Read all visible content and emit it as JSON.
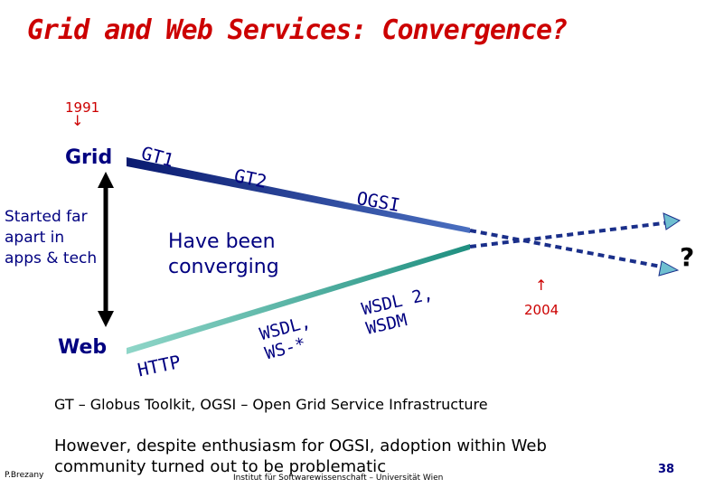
{
  "title": "Grid and Web Services: Convergence?",
  "timeline": {
    "start_year": "1991",
    "end_year": "2004",
    "down_arrow": "↓",
    "up_arrow": "↑"
  },
  "left_axis": {
    "top_label": "Grid",
    "bottom_label": "Web",
    "description": "Started far apart in apps & tech"
  },
  "middle_label": "Have been converging",
  "grid_line_labels": [
    "GT1",
    "GT2",
    "OGSI"
  ],
  "web_line_labels": {
    "http": "HTTP",
    "wsdl": "WSDL,\nWS-*",
    "wsdl2": "WSDL 2,\nWSDM"
  },
  "question_mark": "?",
  "legend_text": "GT – Globus Toolkit, OGSI – Open Grid Service Infrastructure",
  "note_text": "However, despite enthusiasm for OGSI, adoption within Web community turned out to be problematic",
  "footer": {
    "author": "P.Brezany",
    "institute": "Institut für Softwarewissenschaft – Universität Wien",
    "page_number": "38"
  },
  "colors": {
    "title": "#cc0000",
    "text": "#000080",
    "grid_line": "#1f3f8f",
    "web_line": "#2e9b8e",
    "dashed_line": "#1a2f8a"
  }
}
